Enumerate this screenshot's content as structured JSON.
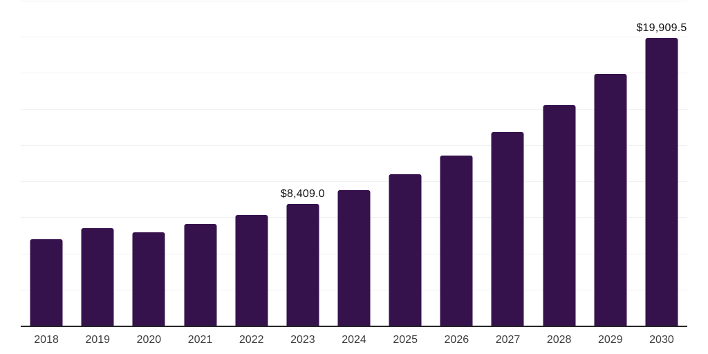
{
  "chart_data": {
    "type": "bar",
    "categories": [
      "2018",
      "2019",
      "2020",
      "2021",
      "2022",
      "2023",
      "2024",
      "2025",
      "2026",
      "2027",
      "2028",
      "2029",
      "2030"
    ],
    "values": [
      5990,
      6750,
      6460,
      7020,
      7660,
      8409.0,
      9380,
      10490,
      11780,
      13410,
      15250,
      17420,
      19909.5
    ],
    "annotations": [
      {
        "category": "2023",
        "label": "$8,409.0"
      },
      {
        "category": "2030",
        "label": "$19,909.5"
      }
    ],
    "title": "",
    "xlabel": "",
    "ylabel": "",
    "ylim": [
      0,
      22500
    ],
    "grid": true,
    "gridline_divisions": 9,
    "legend": false,
    "colors": {
      "bar": "#36124d",
      "gridline": "#f1f1f3",
      "axis_line": "#262626",
      "tick_label": "#3d3d3d",
      "value_label": "#111111",
      "background": "#ffffff"
    }
  }
}
